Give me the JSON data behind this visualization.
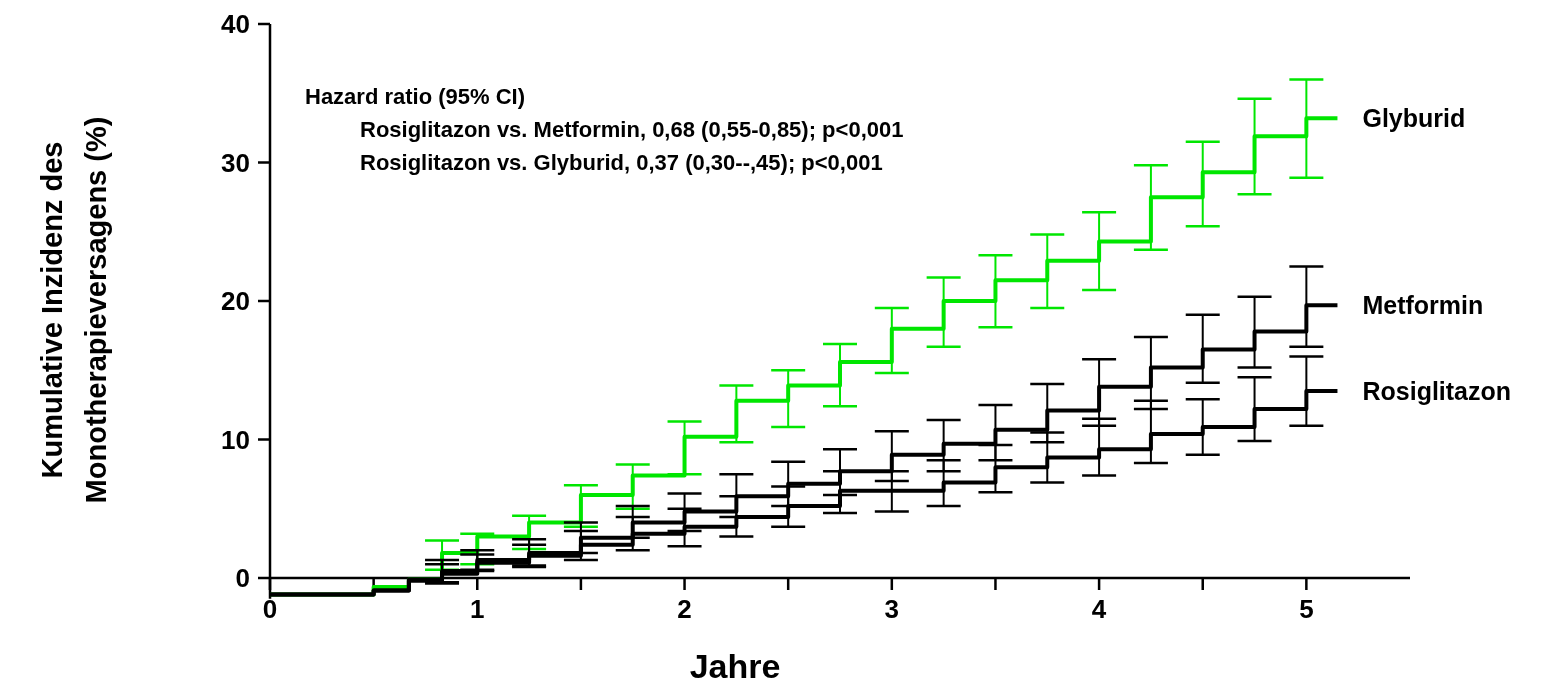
{
  "chart_data": {
    "type": "step",
    "xlabel": "Jahre",
    "ylabel": "Kumulative Inzidenz des\nMonotherapieversagens (%)",
    "x": [
      0,
      0.5,
      0.67,
      0.83,
      1,
      1.25,
      1.5,
      1.75,
      2,
      2.25,
      2.5,
      2.75,
      3,
      3.25,
      3.5,
      3.75,
      4,
      4.25,
      4.5,
      4.75,
      5,
      5.15
    ],
    "series": [
      {
        "name": "Glyburid",
        "color": "#00e600",
        "values": [
          -1.2,
          -0.65,
          -0.1,
          1.8,
          3.0,
          4.0,
          6.0,
          7.4,
          10.2,
          12.8,
          13.9,
          15.6,
          18.0,
          20.0,
          21.5,
          22.9,
          24.3,
          27.5,
          29.3,
          31.9,
          33.2,
          33.2
        ],
        "errors": [
          null,
          null,
          null,
          [
            0.6,
            2.7
          ],
          [
            1.0,
            3.2
          ],
          [
            2.1,
            4.5
          ],
          [
            3.7,
            6.7
          ],
          [
            5.0,
            8.2
          ],
          [
            7.5,
            11.3
          ],
          [
            9.8,
            13.9
          ],
          [
            10.9,
            15.0
          ],
          [
            12.4,
            16.9
          ],
          [
            14.8,
            19.5
          ],
          [
            16.7,
            21.7
          ],
          [
            18.1,
            23.3
          ],
          [
            19.5,
            24.8
          ],
          [
            20.8,
            26.4
          ],
          [
            23.7,
            29.8
          ],
          [
            25.4,
            31.5
          ],
          [
            27.7,
            34.6
          ],
          [
            28.9,
            36.0
          ],
          null
        ]
      },
      {
        "name": "Metformin",
        "color": "#000000",
        "values": [
          -1.2,
          -0.9,
          -0.1,
          0.5,
          1.3,
          1.8,
          2.9,
          4.0,
          4.8,
          5.9,
          6.8,
          7.7,
          8.9,
          9.7,
          10.7,
          12.1,
          13.8,
          15.2,
          16.5,
          17.8,
          19.7,
          19.7
        ],
        "errors": [
          null,
          null,
          null,
          [
            -0.3,
            1.3
          ],
          [
            0.6,
            2.0
          ],
          [
            0.9,
            2.8
          ],
          [
            1.8,
            4.0
          ],
          [
            2.9,
            5.2
          ],
          [
            3.4,
            6.1
          ],
          [
            4.4,
            7.5
          ],
          [
            5.2,
            8.4
          ],
          [
            6.0,
            9.3
          ],
          [
            7.0,
            10.6
          ],
          [
            7.7,
            11.4
          ],
          [
            8.5,
            12.5
          ],
          [
            9.8,
            14.0
          ],
          [
            11.0,
            15.8
          ],
          [
            12.2,
            17.4
          ],
          [
            14.1,
            19.0
          ],
          [
            15.2,
            20.3
          ],
          [
            16.7,
            22.5
          ],
          null
        ]
      },
      {
        "name": "Rosiglitazon",
        "color": "#000000",
        "values": [
          -1.2,
          -0.9,
          -0.2,
          0.3,
          1.1,
          1.6,
          2.4,
          3.2,
          3.7,
          4.4,
          5.2,
          6.3,
          6.3,
          6.9,
          8.0,
          8.7,
          9.3,
          10.4,
          10.9,
          12.2,
          13.5,
          13.5
        ],
        "errors": [
          null,
          null,
          null,
          [
            -0.4,
            1.0
          ],
          [
            0.5,
            1.7
          ],
          [
            0.8,
            2.4
          ],
          [
            1.3,
            3.4
          ],
          [
            2.0,
            4.4
          ],
          [
            2.3,
            5.0
          ],
          [
            3.0,
            5.9
          ],
          [
            3.7,
            6.6
          ],
          [
            4.7,
            7.7
          ],
          [
            4.8,
            7.7
          ],
          [
            5.2,
            8.5
          ],
          [
            6.2,
            9.6
          ],
          [
            6.9,
            10.5
          ],
          [
            7.4,
            11.5
          ],
          [
            8.3,
            12.8
          ],
          [
            8.9,
            12.9
          ],
          [
            9.9,
            14.5
          ],
          [
            11.0,
            16.0
          ],
          null
        ]
      }
    ],
    "xlim": [
      0,
      5.5
    ],
    "xticks": [
      0,
      {
        "value": 0.5,
        "label": null
      },
      1,
      {
        "value": 1.5,
        "label": null
      },
      2,
      {
        "value": 2.5,
        "label": null
      },
      3,
      {
        "value": 3.5,
        "label": null
      },
      4,
      {
        "value": 4.5,
        "label": null
      },
      5
    ],
    "ylim": [
      -1.5,
      40
    ],
    "yticks": [
      0,
      10,
      20,
      30,
      40
    ],
    "grid": false,
    "legend": false,
    "annotations": [
      "Hazard ratio (95% CI)",
      "Rosiglitazon vs. Metformin, 0,68 (0,55-0,85); p<0,001",
      "Rosiglitazon vs. Glyburid, 0,37 (0,30--,45); p<0,001"
    ]
  }
}
